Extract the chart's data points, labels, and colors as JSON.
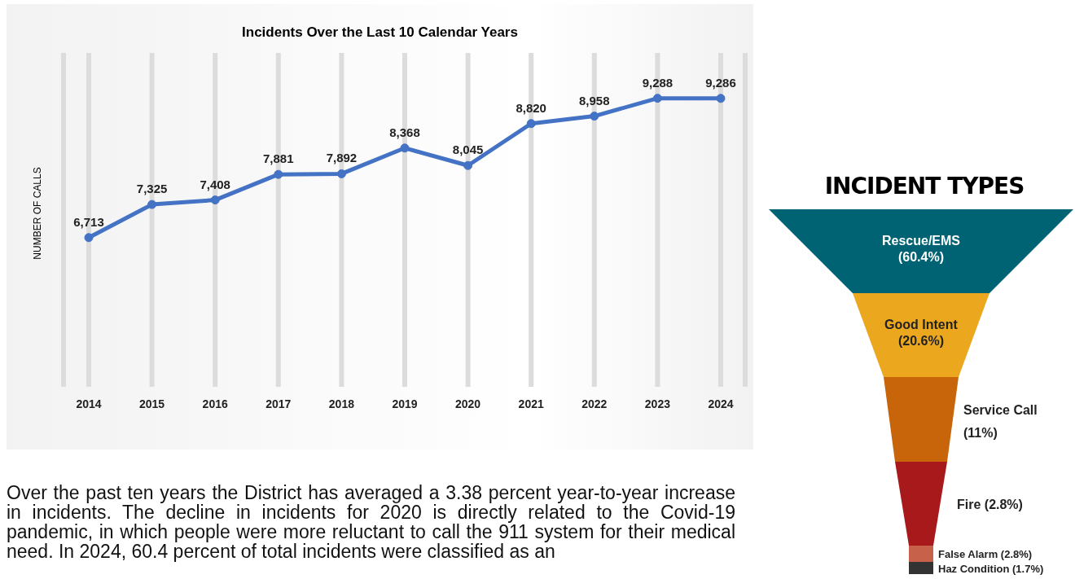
{
  "chart_data": [
    {
      "type": "line",
      "title": "Incidents Over the Last 10 Calendar Years",
      "ylabel": "NUMBER OF CALLS",
      "categories": [
        "2014",
        "2015",
        "2016",
        "2017",
        "2018",
        "2019",
        "2020",
        "2021",
        "2022",
        "2023",
        "2024"
      ],
      "values": [
        6713,
        7325,
        7408,
        7881,
        7892,
        8368,
        8045,
        8820,
        8958,
        9288,
        9286
      ],
      "value_labels": [
        "6,713",
        "7,325",
        "7,408",
        "7,881",
        "7,892",
        "8,368",
        "8,045",
        "8,820",
        "8,958",
        "9,288",
        "9,286"
      ],
      "color": "#4472c4",
      "marker": "circle",
      "grid": "x",
      "annotations": [
        "Over the past ten years the District has averaged a 3.38 percent year-to-year increase in incidents.  The decline in incidents for 2020 is directly related to the Covid-19 pandemic, in which people were more reluctant to call the 911 system for their medical need.  In 2024, 60.4 percent of total incidents were classified as an"
      ]
    },
    {
      "type": "other",
      "title": "INCIDENT TYPES",
      "categories": [
        "Rescue/EMS",
        "Good Intent",
        "Service Call",
        "Fire",
        "False Alarm",
        "Haz Condition"
      ],
      "values": [
        60.4,
        20.6,
        11,
        2.8,
        2.8,
        1.7
      ],
      "value_labels": [
        "(60.4%)",
        "(20.6%)",
        "(11%)",
        "(2.8%)",
        "(2.8%)",
        "(1.7%)"
      ],
      "colors": [
        "#006374",
        "#eba71e",
        "#c8650a",
        "#a8191c",
        "#c7614a",
        "#333333"
      ]
    }
  ]
}
